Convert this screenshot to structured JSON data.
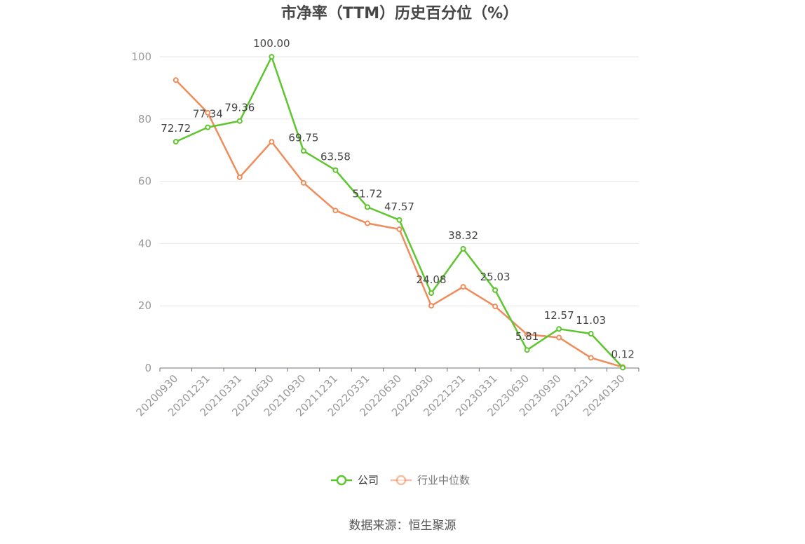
{
  "chart_data": {
    "type": "line",
    "title": "市净率（TTM）历史百分位（%）",
    "categories": [
      "20200930",
      "20201231",
      "20210331",
      "20210630",
      "20210930",
      "20211231",
      "20220331",
      "20220630",
      "20220930",
      "20221231",
      "20230331",
      "20230630",
      "20230930",
      "20231231",
      "20240130"
    ],
    "ylim": [
      0,
      100
    ],
    "yticks": [
      0,
      20,
      40,
      60,
      80,
      100
    ],
    "grid": true,
    "legend_position": "bottom",
    "series": [
      {
        "name": "公司",
        "color": "#5ec52e",
        "values": [
          72.72,
          77.34,
          79.36,
          100.0,
          69.75,
          63.58,
          51.72,
          47.57,
          24.08,
          38.32,
          25.03,
          5.81,
          12.57,
          11.03,
          0.12
        ],
        "labels": [
          "72.72",
          "77.34",
          "79.36",
          "100.00",
          "69.75",
          "63.58",
          "51.72",
          "47.57",
          "24.08",
          "38.32",
          "25.03",
          "5.81",
          "12.57",
          "11.03",
          "0.12"
        ]
      },
      {
        "name": "行业中位数",
        "color": "#f08c5a",
        "values": [
          92.5,
          82.0,
          61.3,
          72.7,
          59.5,
          50.6,
          46.5,
          44.6,
          20.0,
          26.1,
          19.8,
          10.8,
          9.8,
          3.3,
          0.3
        ]
      }
    ],
    "source": "数据来源：恒生聚源"
  }
}
